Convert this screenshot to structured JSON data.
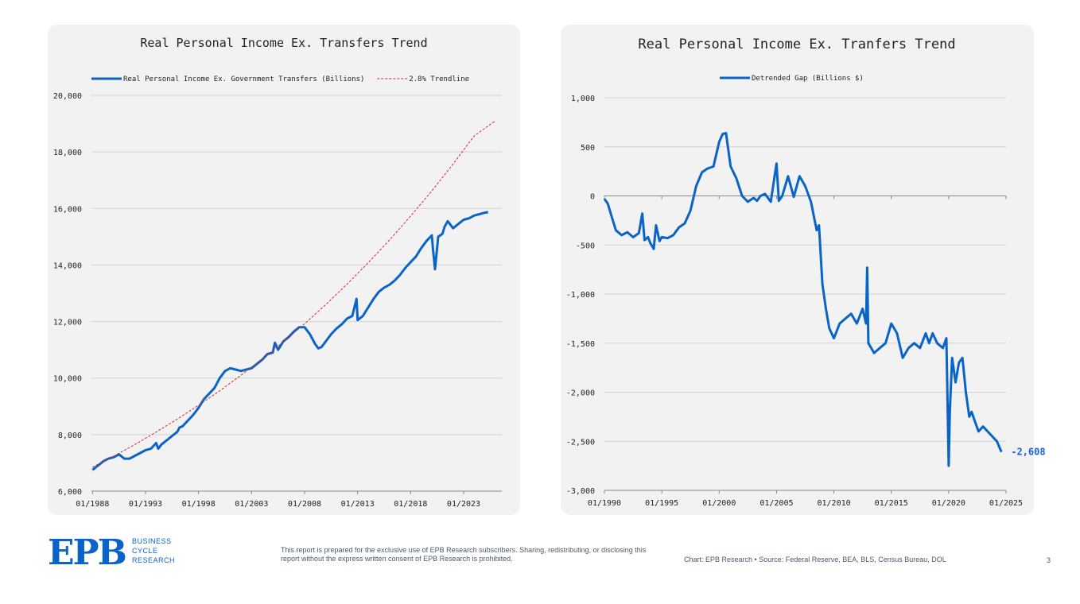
{
  "colors": {
    "series": "#0a64c8",
    "trend": "#d62728",
    "panel": "#f2f2f2",
    "grid": "#d3d3d3",
    "text": "#222222"
  },
  "chart_data": [
    {
      "type": "line",
      "title": "Real Personal Income Ex. Transfers Trend",
      "xlabel": "",
      "ylabel": "",
      "x_tick_labels": [
        "01/1988",
        "01/1993",
        "01/1998",
        "01/2003",
        "01/2008",
        "01/2013",
        "01/2018",
        "01/2023"
      ],
      "x_ticks": [
        1988,
        1993,
        1998,
        2003,
        2008,
        2013,
        2018,
        2023
      ],
      "xlim": [
        1987.9,
        2026.6
      ],
      "y_ticks": [
        6000,
        8000,
        10000,
        12000,
        14000,
        16000,
        18000,
        20000
      ],
      "y_tick_labels": [
        "6,000",
        "8,000",
        "10,000",
        "12,000",
        "14,000",
        "16,000",
        "18,000",
        "20,000"
      ],
      "ylim": [
        6000,
        20000
      ],
      "grid": "horizontal",
      "legend": "top",
      "series": [
        {
          "name": "Real Personal Income Ex. Government Transfers (Billions)",
          "style": "solid",
          "x": [
            1988.0,
            1988.5,
            1989.0,
            1989.5,
            1990.0,
            1990.5,
            1991.0,
            1991.5,
            1992.0,
            1992.5,
            1993.0,
            1993.5,
            1994.0,
            1994.2,
            1994.5,
            1995.0,
            1995.5,
            1996.0,
            1996.2,
            1996.5,
            1997.0,
            1997.5,
            1998.0,
            1998.5,
            1999.0,
            1999.5,
            2000.0,
            2000.5,
            2001.0,
            2001.5,
            2002.0,
            2002.5,
            2003.0,
            2003.5,
            2004.0,
            2004.5,
            2005.0,
            2005.2,
            2005.5,
            2006.0,
            2006.5,
            2007.0,
            2007.5,
            2008.0,
            2008.5,
            2009.0,
            2009.3,
            2009.6,
            2010.0,
            2010.5,
            2011.0,
            2011.5,
            2012.0,
            2012.5,
            2012.9,
            2013.0,
            2013.5,
            2014.0,
            2014.5,
            2015.0,
            2015.5,
            2016.0,
            2016.5,
            2017.0,
            2017.5,
            2018.0,
            2018.5,
            2019.0,
            2019.5,
            2020.0,
            2020.1,
            2020.3,
            2020.6,
            2021.0,
            2021.2,
            2021.5,
            2022.0,
            2022.5,
            2023.0,
            2023.5,
            2024.0,
            2024.5,
            2025.0,
            2025.3
          ],
          "values": [
            6750,
            6900,
            7050,
            7150,
            7200,
            7300,
            7150,
            7150,
            7250,
            7350,
            7450,
            7500,
            7700,
            7500,
            7650,
            7800,
            7950,
            8100,
            8250,
            8300,
            8500,
            8700,
            8950,
            9250,
            9450,
            9650,
            10000,
            10250,
            10350,
            10300,
            10250,
            10300,
            10350,
            10500,
            10650,
            10850,
            10900,
            11250,
            11000,
            11300,
            11450,
            11650,
            11800,
            11800,
            11550,
            11200,
            11050,
            11100,
            11300,
            11550,
            11750,
            11900,
            12100,
            12200,
            12800,
            12050,
            12200,
            12500,
            12800,
            13050,
            13200,
            13300,
            13450,
            13650,
            13900,
            14100,
            14300,
            14600,
            14850,
            15050,
            14600,
            13850,
            15000,
            15100,
            15350,
            15550,
            15300,
            15450,
            15600,
            15650,
            15750,
            15800,
            15850,
            15870
          ]
        },
        {
          "name": "2.8% Trendline",
          "style": "dashed",
          "x": [
            1988,
            1990,
            1992,
            1994,
            1996,
            1998,
            2000,
            2002,
            2004,
            2006,
            2008,
            2010,
            2012,
            2014,
            2016,
            2018,
            2020,
            2022,
            2024,
            2026
          ],
          "values": [
            6850,
            7240,
            7650,
            8090,
            8550,
            9040,
            9550,
            10100,
            10670,
            11280,
            11920,
            12600,
            13320,
            14080,
            14880,
            15730,
            16620,
            17570,
            18570,
            19100
          ]
        }
      ]
    },
    {
      "type": "line",
      "title": "Real Personal Income Ex. Tranfers Trend",
      "xlabel": "",
      "ylabel": "",
      "x_tick_labels": [
        "01/1990",
        "01/1995",
        "01/2000",
        "01/2005",
        "01/2010",
        "01/2015",
        "01/2020",
        "01/2025"
      ],
      "x_ticks": [
        1990,
        1995,
        2000,
        2005,
        2010,
        2015,
        2020,
        2025
      ],
      "xlim": [
        1990,
        2025
      ],
      "y_ticks": [
        -3000,
        -2500,
        -2000,
        -1500,
        -1000,
        -500,
        0,
        500,
        1000
      ],
      "y_tick_labels": [
        "-3,000",
        "-2,500",
        "-2,000",
        "-1,500",
        "-1,000",
        "-500",
        "0",
        "500",
        "1,000"
      ],
      "ylim": [
        -3000,
        1000
      ],
      "grid": "horizontal",
      "legend": "top",
      "end_label": "-2,608",
      "series": [
        {
          "name": "Detrended Gap (Billions $)",
          "style": "solid",
          "x": [
            1990.0,
            1990.3,
            1990.6,
            1991.0,
            1991.5,
            1992.0,
            1992.5,
            1993.0,
            1993.3,
            1993.5,
            1993.8,
            1994.0,
            1994.3,
            1994.5,
            1994.8,
            1995.0,
            1995.5,
            1996.0,
            1996.5,
            1997.0,
            1997.5,
            1998.0,
            1998.5,
            1999.0,
            1999.5,
            2000.0,
            2000.3,
            2000.6,
            2001.0,
            2001.5,
            2002.0,
            2002.5,
            2003.0,
            2003.3,
            2003.6,
            2004.0,
            2004.5,
            2005.0,
            2005.2,
            2005.5,
            2006.0,
            2006.5,
            2007.0,
            2007.5,
            2008.0,
            2008.5,
            2008.7,
            2009.0,
            2009.3,
            2009.6,
            2010.0,
            2010.5,
            2011.0,
            2011.5,
            2012.0,
            2012.5,
            2012.8,
            2012.9,
            2013.0,
            2013.5,
            2014.0,
            2014.5,
            2015.0,
            2015.5,
            2016.0,
            2016.5,
            2017.0,
            2017.5,
            2018.0,
            2018.3,
            2018.6,
            2019.0,
            2019.5,
            2019.8,
            2020.0,
            2020.1,
            2020.3,
            2020.6,
            2020.9,
            2021.2,
            2021.5,
            2021.8,
            2022.0,
            2022.3,
            2022.6,
            2023.0,
            2023.4,
            2023.8,
            2024.2,
            2024.6
          ],
          "values": [
            -30,
            -80,
            -200,
            -350,
            -400,
            -370,
            -420,
            -380,
            -180,
            -450,
            -420,
            -480,
            -540,
            -300,
            -460,
            -420,
            -430,
            -400,
            -320,
            -280,
            -150,
            100,
            240,
            280,
            300,
            550,
            630,
            640,
            300,
            180,
            0,
            -60,
            -20,
            -50,
            0,
            20,
            -60,
            330,
            -50,
            0,
            200,
            -10,
            200,
            100,
            -60,
            -350,
            -300,
            -900,
            -1150,
            -1350,
            -1450,
            -1300,
            -1250,
            -1200,
            -1300,
            -1150,
            -1300,
            -730,
            -1500,
            -1600,
            -1550,
            -1500,
            -1300,
            -1400,
            -1650,
            -1550,
            -1500,
            -1550,
            -1400,
            -1500,
            -1400,
            -1500,
            -1550,
            -1450,
            -2750,
            -2200,
            -1650,
            -1900,
            -1700,
            -1650,
            -2000,
            -2250,
            -2200,
            -2300,
            -2400,
            -2350,
            -2400,
            -2450,
            -2500,
            -2608
          ]
        }
      ]
    }
  ],
  "footer": {
    "logo_mark": "EPB",
    "logo_lines": [
      "BUSINESS",
      "CYCLE",
      "RESEARCH"
    ],
    "disclaimer": "This report is prepared for the exclusive use of EPB Research subscribers. Sharing, redistributing, or disclosing this report without the express written consent of EPB Research is prohibited.",
    "source": "Chart: EPB Research  •  Source: Federal Reserve, BEA, BLS, Census Bureau, DOL",
    "page": "3"
  }
}
